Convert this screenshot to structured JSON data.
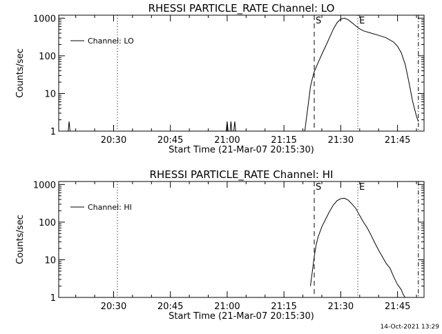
{
  "footer": {
    "timestamp": "14-Oct-2021 13:29"
  },
  "chart_data": [
    {
      "type": "line",
      "title": "RHESSI PARTICLE_RATE Channel: LO",
      "xlabel": "Start Time (21-Mar-07 20:15:30)",
      "ylabel": "Counts/sec",
      "yscale": "log",
      "xlim": [
        "20:15:30",
        "21:52:00"
      ],
      "ylim": [
        1,
        1000
      ],
      "x_ticks": [
        "20:30",
        "20:45",
        "21:00",
        "21:15",
        "21:30",
        "21:45"
      ],
      "y_ticks": [
        "1",
        "10",
        "100",
        "1000"
      ],
      "legend": {
        "position": "top-left",
        "entries": [
          "Channel: LO"
        ]
      },
      "markers": [
        {
          "label": "S",
          "time": "21:23:00",
          "style": "dashed"
        },
        {
          "label": "E",
          "time": "21:34:30",
          "style": "dotted"
        }
      ],
      "vlines": [
        {
          "time": "20:31:00",
          "style": "dotted"
        },
        {
          "time": "21:50:30",
          "style": "dashdot"
        }
      ],
      "series": [
        {
          "name": "Channel: LO",
          "segments": [
            [
              [
                "20:18:00",
                1
              ],
              [
                "20:18:15",
                1.8
              ],
              [
                "20:18:30",
                1
              ]
            ],
            [
              [
                "20:59:45",
                1
              ],
              [
                "21:00:00",
                1.8
              ],
              [
                "21:00:15",
                1
              ],
              [
                "21:00:45",
                1
              ],
              [
                "21:01:00",
                1.8
              ],
              [
                "21:01:15",
                1
              ],
              [
                "21:01:45",
                1
              ],
              [
                "21:02:00",
                1.8
              ],
              [
                "21:02:15",
                1
              ]
            ],
            [
              [
                "21:20:30",
                1
              ],
              [
                "21:21:00",
                2.5
              ],
              [
                "21:21:30",
                6
              ],
              [
                "21:22:00",
                15
              ],
              [
                "21:22:30",
                25
              ],
              [
                "21:23:00",
                38
              ],
              [
                "21:24:00",
                65
              ],
              [
                "21:25:00",
                110
              ],
              [
                "21:26:00",
                180
              ],
              [
                "21:27:00",
                300
              ],
              [
                "21:28:00",
                500
              ],
              [
                "21:29:00",
                750
              ],
              [
                "21:30:00",
                950
              ],
              [
                "21:31:00",
                1000
              ],
              [
                "21:32:00",
                900
              ],
              [
                "21:33:00",
                750
              ],
              [
                "21:34:00",
                620
              ],
              [
                "21:35:00",
                520
              ],
              [
                "21:36:00",
                460
              ],
              [
                "21:38:00",
                400
              ],
              [
                "21:40:00",
                350
              ],
              [
                "21:42:00",
                300
              ],
              [
                "21:44:00",
                230
              ],
              [
                "21:45:00",
                180
              ],
              [
                "21:46:00",
                120
              ],
              [
                "21:47:00",
                60
              ],
              [
                "21:48:00",
                20
              ],
              [
                "21:49:00",
                6
              ],
              [
                "21:50:00",
                2.5
              ],
              [
                "21:50:30",
                1.8
              ]
            ]
          ]
        }
      ]
    },
    {
      "type": "line",
      "title": "RHESSI PARTICLE_RATE Channel: HI",
      "xlabel": "Start Time (21-Mar-07 20:15:30)",
      "ylabel": "Counts/sec",
      "yscale": "log",
      "xlim": [
        "20:15:30",
        "21:52:00"
      ],
      "ylim": [
        1,
        1000
      ],
      "x_ticks": [
        "20:30",
        "20:45",
        "21:00",
        "21:15",
        "21:30",
        "21:45"
      ],
      "y_ticks": [
        "1",
        "10",
        "100",
        "1000"
      ],
      "legend": {
        "position": "top-left",
        "entries": [
          "Channel: HI"
        ]
      },
      "markers": [
        {
          "label": "S",
          "time": "21:23:00",
          "style": "dashed"
        },
        {
          "label": "E",
          "time": "21:34:30",
          "style": "dotted"
        }
      ],
      "vlines": [
        {
          "time": "20:31:00",
          "style": "dotted"
        },
        {
          "time": "21:50:30",
          "style": "dashdot"
        }
      ],
      "series": [
        {
          "name": "Channel: HI",
          "segments": [
            [
              [
                "21:22:00",
                2
              ],
              [
                "21:22:30",
                5
              ],
              [
                "21:23:00",
                12
              ],
              [
                "21:23:30",
                25
              ],
              [
                "21:24:00",
                40
              ],
              [
                "21:25:00",
                75
              ],
              [
                "21:26:00",
                120
              ],
              [
                "21:27:00",
                190
              ],
              [
                "21:28:00",
                280
              ],
              [
                "21:29:00",
                370
              ],
              [
                "21:30:00",
                420
              ],
              [
                "21:31:00",
                430
              ],
              [
                "21:32:00",
                380
              ],
              [
                "21:33:00",
                300
              ],
              [
                "21:34:00",
                230
              ],
              [
                "21:35:00",
                150
              ],
              [
                "21:36:00",
                100
              ],
              [
                "21:37:00",
                70
              ],
              [
                "21:38:00",
                45
              ],
              [
                "21:39:00",
                28
              ],
              [
                "21:40:00",
                18
              ],
              [
                "21:41:00",
                12
              ],
              [
                "21:42:00",
                8
              ],
              [
                "21:43:00",
                6
              ],
              [
                "21:44:00",
                3.5
              ],
              [
                "21:45:00",
                2.2
              ],
              [
                "21:46:00",
                1.6
              ],
              [
                "21:46:30",
                1.2
              ],
              [
                "21:47:00",
                1
              ]
            ]
          ]
        }
      ]
    }
  ]
}
